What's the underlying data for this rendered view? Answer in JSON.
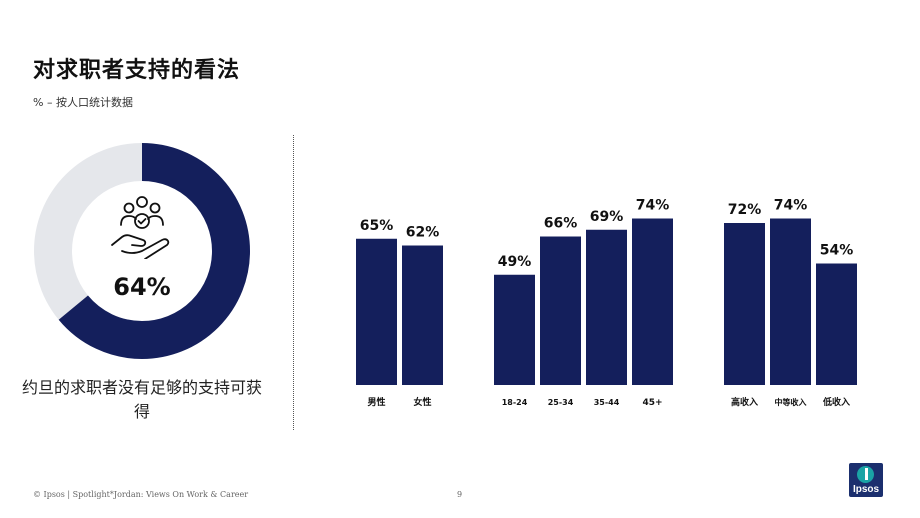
{
  "header": {
    "title": "对求职者支持的看法",
    "subtitle": "% – 按人口统计数据"
  },
  "donut": {
    "value_label": "64%",
    "caption": "约旦的求职者没有足够的支持可获得"
  },
  "chart_data": [
    {
      "type": "pie",
      "values": [
        64,
        36
      ],
      "colors": [
        "#141f5c",
        "#e5e7eb"
      ]
    },
    {
      "type": "bar",
      "categories": [
        "男性",
        "女性"
      ],
      "values": [
        65,
        62
      ],
      "labels": [
        "65%",
        "62%"
      ],
      "ylim": [
        0,
        100
      ],
      "color": "#141f5c"
    },
    {
      "type": "bar",
      "categories": [
        "18-24",
        "25-34",
        "35-44",
        "45+"
      ],
      "values": [
        49,
        66,
        69,
        74
      ],
      "labels": [
        "49%",
        "66%",
        "69%",
        "74%"
      ],
      "ylim": [
        0,
        100
      ],
      "color": "#141f5c"
    },
    {
      "type": "bar",
      "categories": [
        "高收入",
        "中等收入",
        "低收入"
      ],
      "values": [
        72,
        74,
        54
      ],
      "labels": [
        "72%",
        "74%",
        "54%"
      ],
      "ylim": [
        0,
        100
      ],
      "color": "#141f5c"
    }
  ],
  "footer": {
    "source": "© Ipsos | Spotlight*Jordan: Views On Work & Career",
    "page_number": "9",
    "logo_text": "Ipsos"
  },
  "icon": "people-in-hand-icon"
}
